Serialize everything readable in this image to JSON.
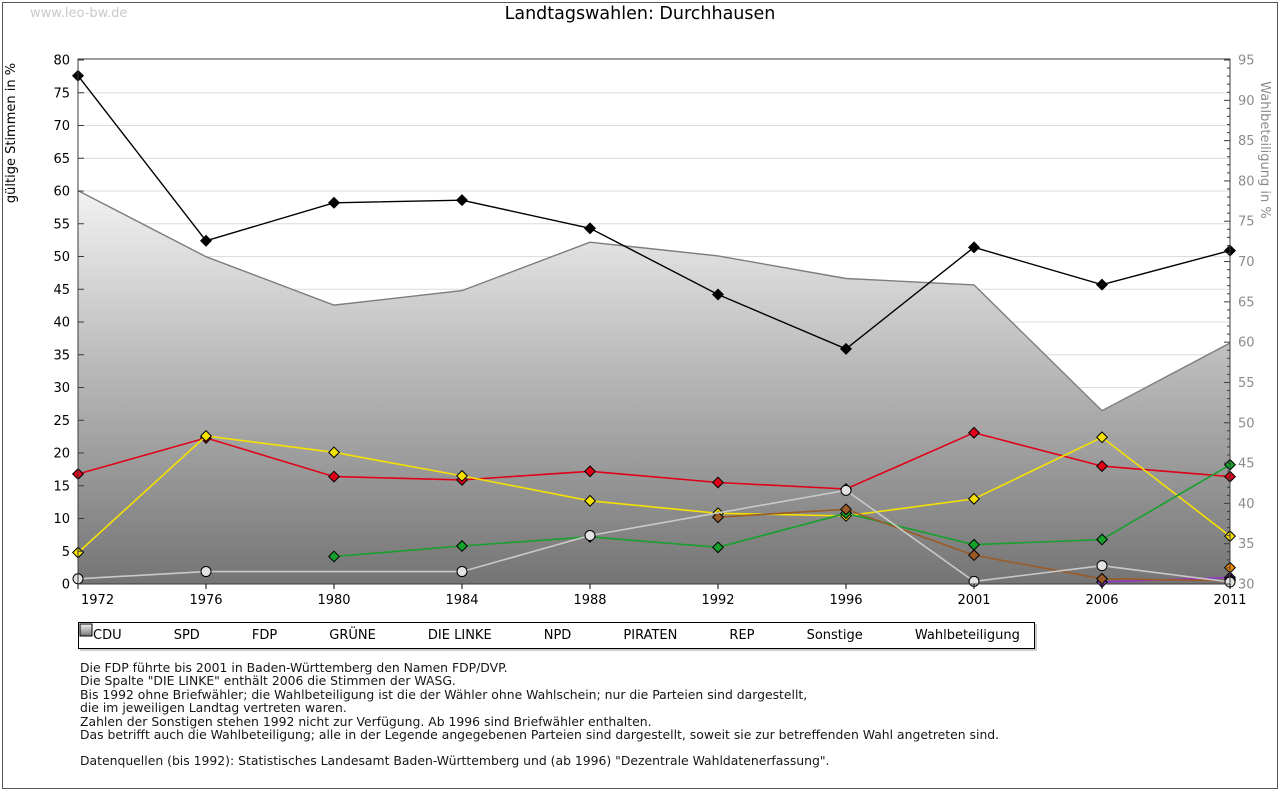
{
  "watermark": "www.leo-bw.de",
  "title": "Landtagswahlen: Durchhausen",
  "axes": {
    "left_label": "gültige Stimmen in %",
    "right_label": "Wahlbeteiligung in %",
    "left_ticks": [
      0,
      5,
      10,
      15,
      20,
      25,
      30,
      35,
      40,
      45,
      50,
      55,
      60,
      65,
      70,
      75,
      80
    ],
    "right_ticks": [
      30,
      35,
      40,
      45,
      50,
      55,
      60,
      65,
      70,
      75,
      80,
      85,
      90,
      95
    ]
  },
  "chart_data": {
    "type": "line",
    "title": "Landtagswahlen: Durchhausen",
    "x": [
      1972,
      1976,
      1980,
      1984,
      1988,
      1992,
      1996,
      2001,
      2006,
      2011
    ],
    "left_axis": {
      "label": "gültige Stimmen in %",
      "range": [
        0,
        80
      ]
    },
    "right_axis": {
      "label": "Wahlbeteiligung in %",
      "range": [
        30,
        95
      ]
    },
    "grid": "horizontal, every 5",
    "legend_position": "bottom",
    "series": [
      {
        "name": "CDU",
        "color": "#000000",
        "marker": "diamond",
        "axis": "left",
        "values": [
          77.6,
          52.4,
          58.2,
          58.6,
          54.3,
          44.2,
          35.9,
          51.4,
          45.7,
          50.9
        ]
      },
      {
        "name": "SPD",
        "color": "#e10019",
        "marker": "diamond",
        "axis": "left",
        "values": [
          16.8,
          22.3,
          16.4,
          15.9,
          17.2,
          15.5,
          14.5,
          23.1,
          18.0,
          16.4
        ]
      },
      {
        "name": "FDP",
        "color": "#f5e100",
        "marker": "diamond",
        "axis": "left",
        "values": [
          4.8,
          22.6,
          20.1,
          16.5,
          12.7,
          10.8,
          10.4,
          13.0,
          22.4,
          7.3
        ]
      },
      {
        "name": "GRÜNE",
        "color": "#16a02c",
        "marker": "diamond",
        "axis": "left",
        "values": [
          null,
          null,
          4.2,
          5.8,
          7.2,
          5.6,
          10.8,
          6.0,
          6.8,
          18.2
        ]
      },
      {
        "name": "DIE LINKE",
        "color": "#9633cc",
        "marker": "diamond",
        "axis": "left",
        "values": [
          null,
          null,
          null,
          null,
          null,
          null,
          null,
          null,
          0.3,
          1.0
        ]
      },
      {
        "name": "NPD",
        "color": "#5a4532",
        "marker": "diamond",
        "axis": "left",
        "values": [
          null,
          null,
          null,
          null,
          null,
          null,
          null,
          null,
          null,
          0.7
        ]
      },
      {
        "name": "PIRATEN",
        "color": "#f28900",
        "marker": "diamond",
        "axis": "left",
        "values": [
          null,
          null,
          null,
          null,
          null,
          null,
          null,
          null,
          null,
          2.5
        ]
      },
      {
        "name": "REP",
        "color": "#9a5b26",
        "marker": "diamond",
        "axis": "left",
        "values": [
          null,
          null,
          null,
          null,
          null,
          10.2,
          11.4,
          4.4,
          0.8,
          0.5
        ]
      },
      {
        "name": "Sonstige",
        "color": "#c9c9c9",
        "fill": "#e3e3e3",
        "marker": "circle",
        "axis": "left",
        "values": [
          0.8,
          1.9,
          null,
          1.9,
          7.4,
          null,
          14.3,
          0.4,
          2.8,
          0.3
        ]
      }
    ],
    "turnout": {
      "name": "Wahlbeteiligung",
      "type": "area",
      "axis": "right",
      "outline_color": "#7d7d7d",
      "gradient": [
        "#f4f4f4",
        "#747474"
      ],
      "values": [
        78.8,
        70.6,
        64.6,
        66.4,
        72.4,
        70.7,
        67.9,
        67.1,
        51.5,
        59.9
      ]
    }
  },
  "footnotes": [
    "Die FDP führte bis 2001 in Baden-Württemberg den Namen FDP/DVP.",
    "Die Spalte \"DIE LINKE\" enthält 2006 die Stimmen der WASG.",
    "Bis 1992 ohne Briefwähler; die Wahlbeteiligung ist die der Wähler ohne Wahlschein; nur die Parteien sind dargestellt,",
    "die im jeweiligen Landtag vertreten waren.",
    "Zahlen der Sonstigen stehen 1992 nicht zur Verfügung. Ab 1996 sind Briefwähler enthalten.",
    "Das betrifft auch die Wahlbeteiligung; alle in der Legende angegebenen Parteien sind dargestellt, soweit sie zur betreffenden Wahl angetreten sind.",
    "",
    "Datenquellen (bis 1992): Statistisches Landesamt Baden-Württemberg und (ab 1996) \"Dezentrale Wahldatenerfassung\"."
  ]
}
